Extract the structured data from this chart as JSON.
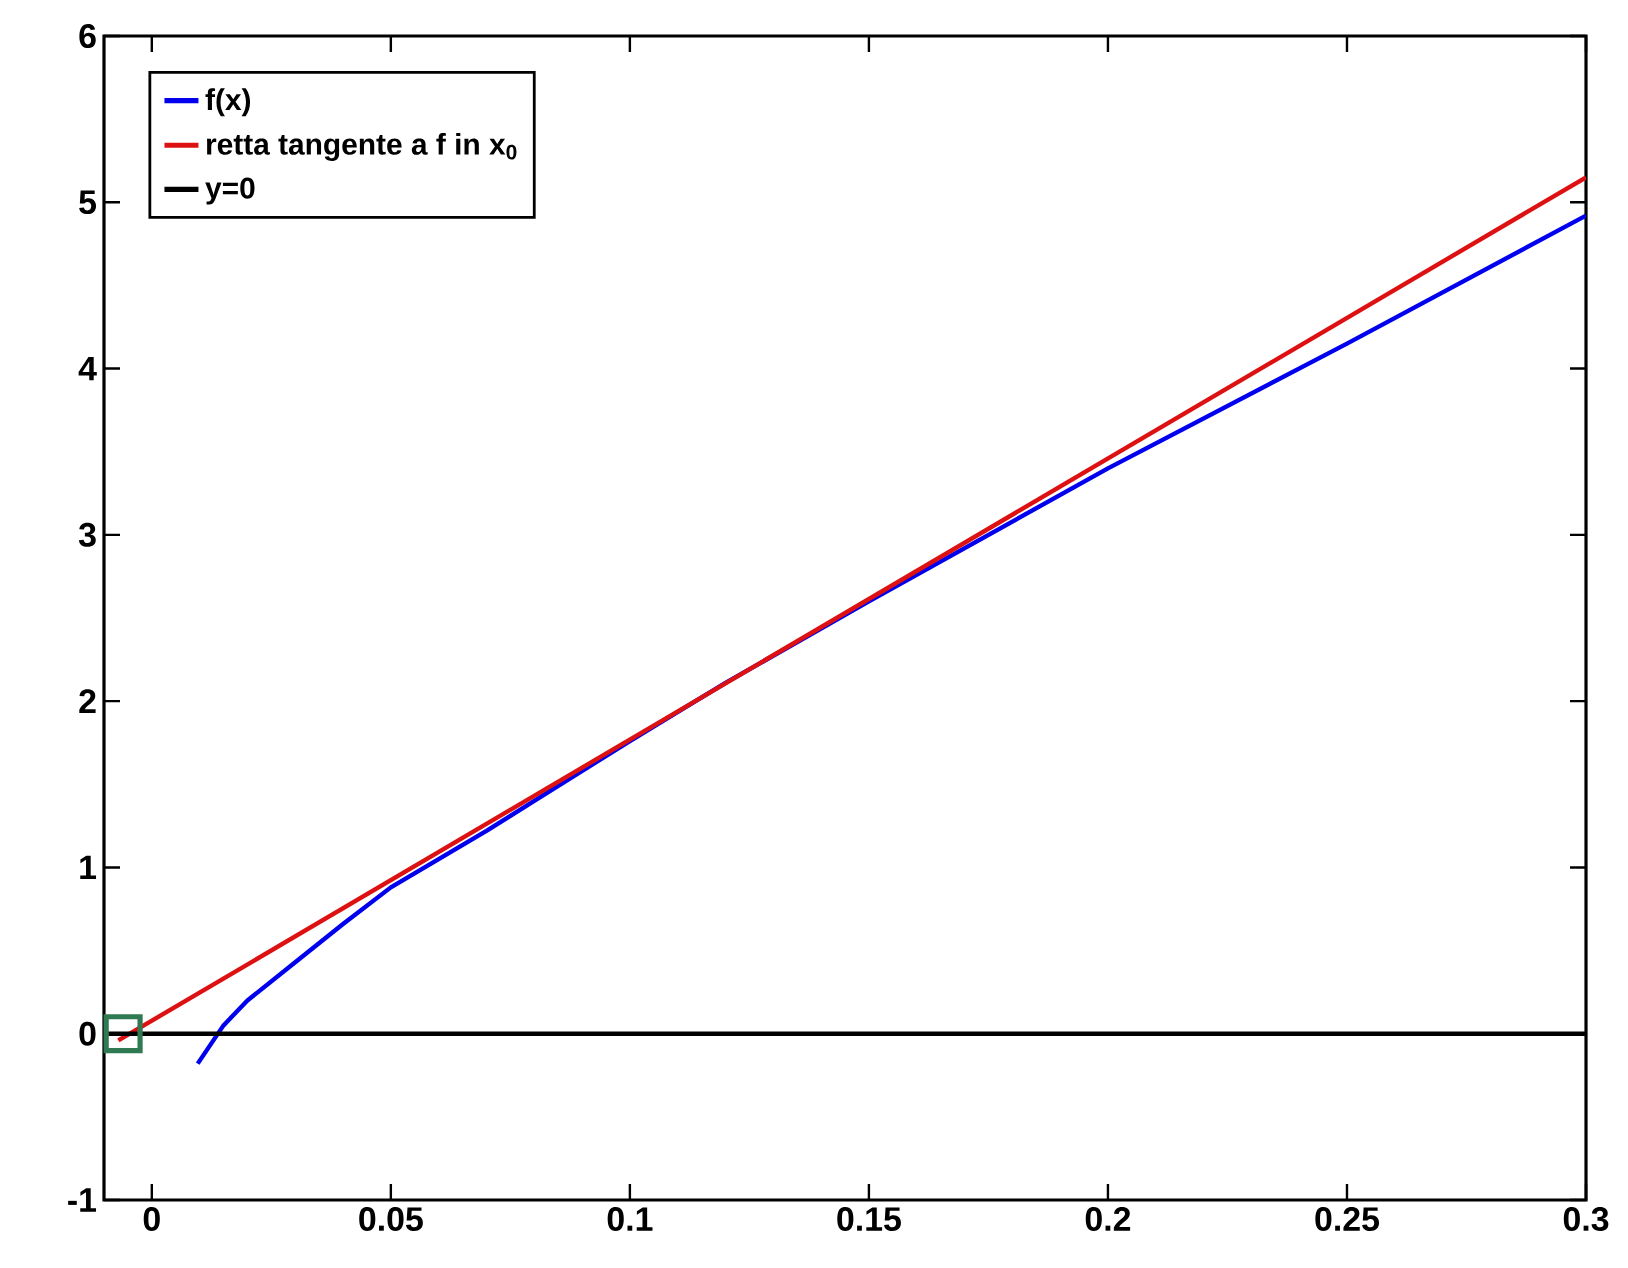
{
  "chart_data": {
    "type": "line",
    "xlim": [
      -0.01,
      0.3
    ],
    "ylim": [
      -1,
      6
    ],
    "xticks": [
      0,
      0.05,
      0.1,
      0.15,
      0.2,
      0.25,
      0.3
    ],
    "yticks": [
      -1,
      0,
      1,
      2,
      3,
      4,
      5,
      6
    ],
    "legend": "top left",
    "grid": false,
    "marker": "none",
    "line_style": "solid",
    "series": [
      {
        "name": "f(x)",
        "color": "#0000ee",
        "x": [
          0.0096,
          0.015,
          0.02,
          0.03,
          0.04,
          0.05,
          0.06,
          0.07,
          0.08,
          0.1,
          0.12,
          0.15,
          0.2,
          0.25,
          0.3
        ],
        "values": [
          -0.18,
          0.05,
          0.2,
          0.43,
          0.66,
          0.88,
          1.05,
          1.22,
          1.4,
          1.76,
          2.11,
          2.6,
          3.4,
          4.15,
          4.92
        ]
      },
      {
        "name": "retta tangente a f in x$_{0}$",
        "color": "#dd1111",
        "x": [
          -0.007,
          0.3
        ],
        "values": [
          -0.04,
          5.15
        ]
      },
      {
        "name": "y=0",
        "color": "#000000",
        "x": [
          -0.01,
          0.3
        ],
        "values": [
          0,
          0
        ]
      },
      {
        "type": "scatter",
        "marker": "square",
        "color": "#2f7a52",
        "x": [
          -0.006
        ],
        "values": [
          0
        ]
      }
    ]
  }
}
